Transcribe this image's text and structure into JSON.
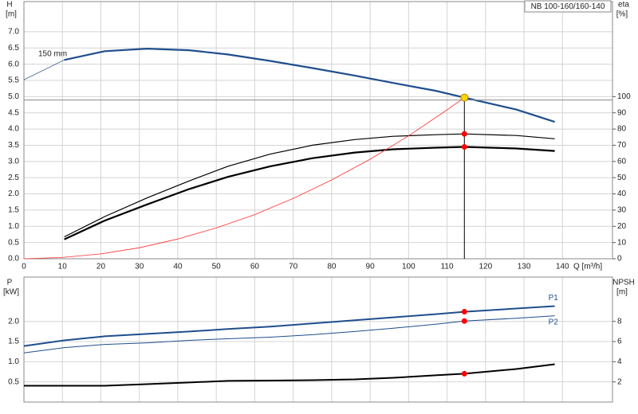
{
  "chart_data": [
    {
      "type": "line",
      "title": "NB 100-160/160-140",
      "y_label": "H",
      "y_unit": "[m]",
      "y2_label": "eta",
      "y2_unit": "[%]",
      "x_label": "Q [m³/h]",
      "annotation": "150 mm",
      "x": [
        0,
        10.5,
        21,
        32,
        43,
        53,
        64,
        75,
        86,
        96,
        107,
        114.5,
        128,
        138
      ],
      "xlim": [
        0,
        153
      ],
      "xticks": [
        0,
        10,
        20,
        30,
        40,
        50,
        60,
        70,
        80,
        90,
        100,
        110,
        120,
        130,
        140
      ],
      "ylim": [
        0,
        7.93
      ],
      "yticks": [
        {
          "value": 0,
          "label": "0.0"
        },
        0.5,
        {
          "value": 1,
          "label": "1.0"
        },
        1.5,
        {
          "value": 2,
          "label": "2.0"
        },
        2.5,
        {
          "value": 3,
          "label": "3.0"
        },
        3.5,
        {
          "value": 4,
          "label": "4.0"
        },
        4.5,
        {
          "value": 5,
          "label": "5.0"
        },
        5.5,
        {
          "value": 6,
          "label": "6.0"
        },
        6.5,
        {
          "value": 7,
          "label": "7.0"
        }
      ],
      "y2lim": [
        0,
        158.6
      ],
      "y2ticks": [
        0,
        10,
        20,
        30,
        40,
        50,
        60,
        70,
        80,
        90,
        100
      ],
      "grid": true,
      "duty_index": 11,
      "series": [
        {
          "color": "#1f4e8c",
          "width": 0.8,
          "values": [
            5.52,
            6.13,
            null,
            null,
            null,
            null,
            null,
            null,
            null,
            null,
            null,
            null,
            null,
            null
          ]
        },
        {
          "color": "#1f4e8c",
          "width": 2.2,
          "marker": "#ffd400",
          "values": [
            null,
            6.13,
            6.4,
            6.48,
            6.43,
            6.3,
            6.1,
            5.88,
            5.65,
            5.42,
            5.18,
            4.97,
            4.6,
            4.22
          ]
        },
        {
          "color": "#000000",
          "width": 1.2,
          "axis": "y2",
          "marker": "#ff0000",
          "values": [
            null,
            13.5,
            26,
            37.5,
            48,
            57,
            64.5,
            70,
            73.5,
            75.5,
            76.5,
            77,
            76,
            74
          ]
        },
        {
          "color": "#000000",
          "width": 2.2,
          "axis": "y2",
          "marker": "#ff0000",
          "values": [
            null,
            12,
            23.5,
            33.5,
            43,
            50.5,
            57,
            62,
            65.5,
            67.5,
            68.5,
            69,
            68,
            66.5
          ]
        },
        {
          "color": "#ff3030",
          "width": 0.8,
          "x": [
            0,
            10,
            20,
            30,
            40,
            50,
            60,
            70,
            80,
            90,
            100,
            110,
            114.5
          ],
          "values": [
            0,
            0.04,
            0.15,
            0.34,
            0.61,
            0.95,
            1.36,
            1.86,
            2.43,
            3.07,
            3.79,
            4.59,
            4.97
          ]
        }
      ]
    },
    {
      "type": "line",
      "y_label": "P",
      "y_unit": "[kW]",
      "y2_label": "NPSH",
      "y2_unit": "[m]",
      "x": [
        0,
        10.5,
        21,
        32,
        43,
        53,
        64,
        75,
        86,
        96,
        107,
        114.5,
        128,
        138
      ],
      "xlim": [
        0,
        153
      ],
      "x_gridlines": [
        0,
        10,
        20,
        30,
        40,
        50,
        60,
        70,
        80,
        90,
        100,
        110,
        120,
        130,
        140
      ],
      "ylim": [
        0,
        3.1
      ],
      "yticks": [
        0.5,
        {
          "value": 1,
          "label": "1.0"
        },
        1.5,
        {
          "value": 2,
          "label": "2.0"
        }
      ],
      "y2lim": [
        0,
        12.4
      ],
      "y2ticks": [
        2,
        4,
        6,
        8
      ],
      "grid": true,
      "duty_index": 11,
      "series": [
        {
          "name": "P1",
          "color": "#1f4e8c",
          "width": 2,
          "marker": "#ff0000",
          "values": [
            1.39,
            1.53,
            1.63,
            1.69,
            1.75,
            1.81,
            1.87,
            1.95,
            2.03,
            2.1,
            2.18,
            2.24,
            2.32,
            2.38
          ]
        },
        {
          "name": "P2",
          "color": "#1f4e8c",
          "width": 1,
          "marker": "#ff0000",
          "values": [
            1.22,
            1.35,
            1.43,
            1.47,
            1.53,
            1.57,
            1.61,
            1.67,
            1.75,
            1.83,
            1.93,
            2.01,
            2.08,
            2.14
          ]
        },
        {
          "color": "#000000",
          "width": 2,
          "axis": "y2",
          "marker": "#ff0000",
          "values": [
            1.62,
            1.62,
            1.62,
            1.78,
            1.94,
            2.1,
            2.13,
            2.17,
            2.25,
            2.41,
            2.65,
            2.81,
            3.28,
            3.75
          ]
        }
      ]
    }
  ]
}
